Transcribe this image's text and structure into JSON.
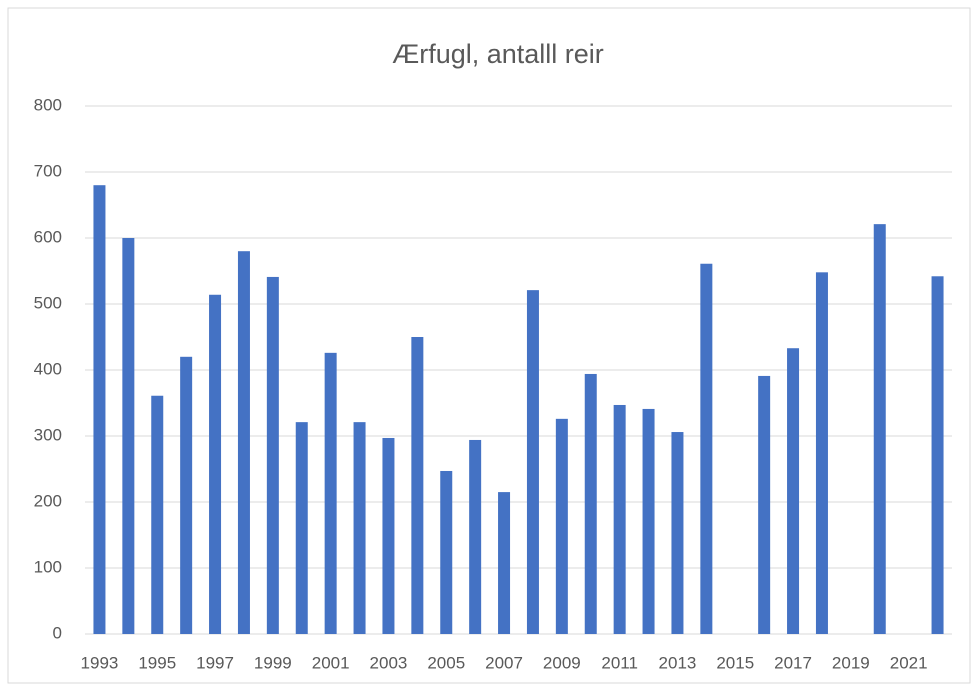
{
  "chart_data": {
    "type": "bar",
    "title": "Ærfugl, antalll reir",
    "categories": [
      "1993",
      null,
      "1995",
      null,
      "1997",
      null,
      "1999",
      null,
      "2001",
      null,
      "2003",
      null,
      "2005",
      null,
      "2007",
      null,
      "2009",
      null,
      "2011",
      null,
      "2013",
      null,
      "2015",
      null,
      "2017",
      null,
      "2019",
      null,
      "2021",
      null
    ],
    "values": [
      680,
      600,
      361,
      420,
      514,
      580,
      541,
      321,
      426,
      321,
      297,
      450,
      247,
      294,
      215,
      521,
      326,
      394,
      347,
      341,
      306,
      561,
      null,
      391,
      433,
      548,
      null,
      621,
      null,
      542
    ],
    "color": "#4472c4",
    "ylim": [
      0,
      800
    ],
    "yticks": [
      0,
      100,
      200,
      300,
      400,
      500,
      600,
      700,
      800
    ],
    "grid": true
  }
}
